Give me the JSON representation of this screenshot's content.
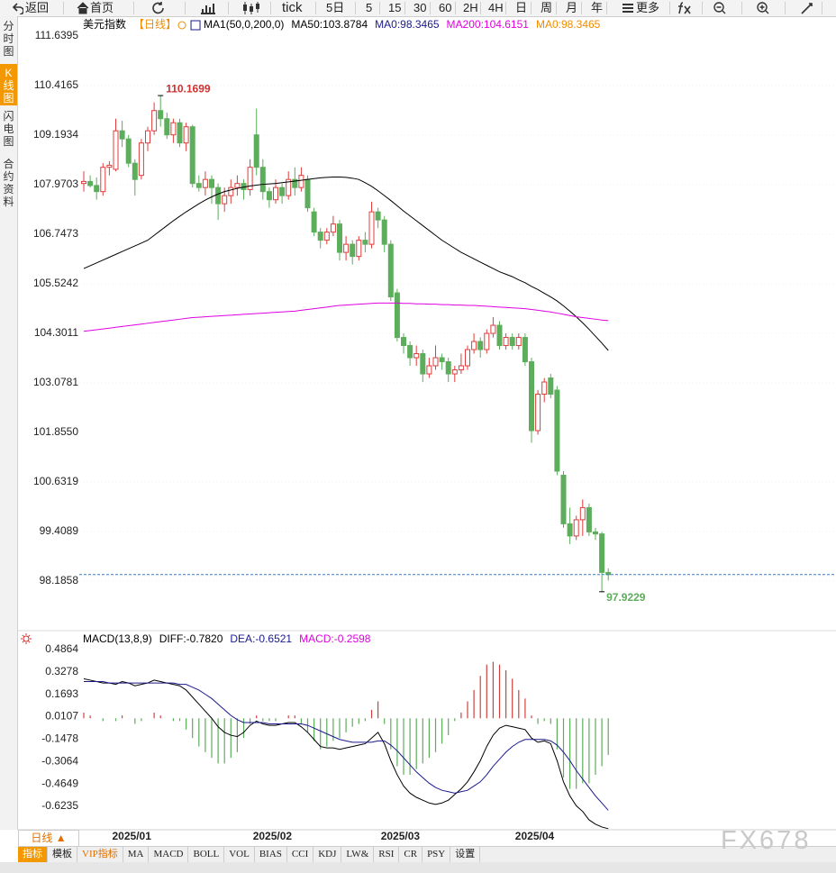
{
  "toolbar": {
    "items": [
      "返回",
      "首页",
      "tick",
      "5日",
      "5",
      "15",
      "30",
      "60",
      "2H",
      "4H",
      "日",
      "周",
      "月",
      "年",
      "更多"
    ]
  },
  "sidebar": {
    "tabs": [
      "分时图",
      "K线图",
      "闪电图",
      "合约资料"
    ]
  },
  "chart_data": [
    {
      "type": "candlestick",
      "title": "美元指数",
      "period": "【日线】",
      "legend": [
        {
          "label": "MA1(50,0,200,0)",
          "color": "#000000"
        },
        {
          "label": "MA50:103.8784",
          "color": "#000000"
        },
        {
          "label": "MA0:98.3465",
          "color": "#1a1a8c"
        },
        {
          "label": "MA200:104.6151",
          "color": "#e000e0"
        },
        {
          "label": "MA0:98.3465",
          "color": "#f08c00"
        }
      ],
      "ohlc": [
        [
          108.0,
          108.3,
          107.8,
          108.05
        ],
        [
          108.05,
          108.2,
          107.9,
          107.95
        ],
        [
          107.95,
          108.15,
          107.6,
          107.8
        ],
        [
          107.8,
          108.5,
          107.7,
          108.4
        ],
        [
          108.4,
          108.55,
          108.2,
          108.45
        ],
        [
          108.35,
          109.6,
          108.3,
          109.3
        ],
        [
          109.3,
          109.55,
          108.9,
          109.1
        ],
        [
          109.1,
          109.2,
          108.4,
          108.5
        ],
        [
          108.5,
          108.6,
          107.7,
          108.1
        ],
        [
          108.2,
          109.1,
          108.1,
          109.0
        ],
        [
          109.0,
          109.4,
          108.8,
          109.3
        ],
        [
          109.3,
          110.0,
          109.2,
          109.8
        ],
        [
          109.8,
          110.1699,
          109.4,
          109.6
        ],
        [
          109.6,
          109.75,
          109.1,
          109.2
        ],
        [
          109.2,
          109.6,
          109.0,
          109.5
        ],
        [
          109.5,
          109.6,
          108.9,
          109.0
        ],
        [
          109.0,
          109.5,
          108.8,
          109.4
        ],
        [
          109.4,
          109.45,
          107.9,
          108.0
        ],
        [
          108.0,
          108.2,
          107.8,
          107.9
        ],
        [
          107.9,
          108.3,
          107.7,
          108.1
        ],
        [
          108.1,
          108.2,
          107.5,
          107.9
        ],
        [
          107.9,
          108.0,
          107.1,
          107.5
        ],
        [
          107.5,
          107.9,
          107.3,
          107.7
        ],
        [
          107.7,
          108.1,
          107.5,
          107.9
        ],
        [
          107.9,
          108.2,
          107.7,
          108.0
        ],
        [
          108.0,
          108.1,
          107.6,
          107.85
        ],
        [
          107.85,
          108.6,
          107.7,
          108.4
        ],
        [
          109.2,
          109.85,
          108.2,
          108.4
        ],
        [
          108.4,
          108.6,
          107.6,
          107.8
        ],
        [
          107.8,
          107.9,
          107.4,
          107.6
        ],
        [
          107.6,
          108.1,
          107.5,
          107.9
        ],
        [
          107.9,
          108.0,
          107.5,
          107.7
        ],
        [
          107.7,
          108.3,
          107.6,
          108.1
        ],
        [
          108.1,
          108.4,
          107.7,
          107.9
        ],
        [
          107.9,
          108.4,
          107.8,
          108.2
        ],
        [
          108.1,
          108.2,
          107.3,
          107.4
        ],
        [
          107.3,
          107.4,
          106.7,
          106.8
        ],
        [
          106.8,
          106.9,
          106.4,
          106.6
        ],
        [
          106.6,
          106.9,
          106.5,
          106.8
        ],
        [
          106.8,
          107.2,
          106.7,
          107.0
        ],
        [
          107.0,
          107.1,
          106.1,
          106.3
        ],
        [
          106.3,
          106.7,
          106.1,
          106.5
        ],
        [
          106.5,
          106.6,
          106.0,
          106.2
        ],
        [
          106.2,
          106.7,
          106.1,
          106.6
        ],
        [
          106.6,
          106.8,
          106.3,
          106.5
        ],
        [
          106.5,
          107.55,
          106.4,
          107.3
        ],
        [
          107.3,
          107.4,
          106.9,
          107.1
        ],
        [
          107.1,
          107.2,
          106.3,
          106.5
        ],
        [
          106.5,
          106.6,
          105.1,
          105.2
        ],
        [
          105.3,
          105.4,
          104.1,
          104.2
        ],
        [
          104.2,
          104.3,
          103.8,
          104.0
        ],
        [
          104.0,
          104.1,
          103.5,
          103.7
        ],
        [
          103.7,
          104.0,
          103.5,
          103.8
        ],
        [
          103.8,
          103.9,
          103.1,
          103.3
        ],
        [
          103.3,
          103.7,
          103.2,
          103.5
        ],
        [
          103.5,
          104.0,
          103.4,
          103.7
        ],
        [
          103.7,
          103.8,
          103.4,
          103.6
        ],
        [
          103.6,
          103.7,
          103.1,
          103.3
        ],
        [
          103.3,
          103.5,
          103.1,
          103.4
        ],
        [
          103.4,
          103.8,
          103.3,
          103.5
        ],
        [
          103.5,
          104.0,
          103.4,
          103.9
        ],
        [
          103.9,
          104.3,
          103.8,
          104.1
        ],
        [
          104.1,
          104.2,
          103.7,
          103.9
        ],
        [
          103.9,
          104.4,
          103.8,
          104.3
        ],
        [
          104.3,
          104.7,
          104.2,
          104.5
        ],
        [
          104.5,
          104.6,
          103.9,
          104.0
        ],
        [
          104.0,
          104.3,
          103.9,
          104.2
        ],
        [
          104.2,
          104.3,
          103.9,
          104.0
        ],
        [
          104.0,
          104.3,
          103.9,
          104.2
        ],
        [
          104.2,
          104.3,
          103.5,
          103.6
        ],
        [
          103.6,
          103.7,
          101.6,
          101.9
        ],
        [
          101.9,
          102.9,
          101.8,
          102.8
        ],
        [
          102.8,
          103.2,
          102.6,
          103.1
        ],
        [
          103.2,
          103.3,
          102.7,
          102.8
        ],
        [
          102.9,
          103.0,
          100.8,
          100.9
        ],
        [
          100.8,
          100.9,
          99.5,
          99.6
        ],
        [
          99.6,
          100.0,
          99.1,
          99.3
        ],
        [
          99.3,
          99.8,
          99.2,
          99.7
        ],
        [
          99.7,
          100.2,
          99.3,
          100.0
        ],
        [
          100.0,
          100.1,
          99.3,
          99.4
        ],
        [
          99.4,
          99.5,
          99.2,
          99.35
        ],
        [
          99.35,
          99.4,
          97.9229,
          98.4
        ],
        [
          98.4,
          98.5,
          98.2,
          98.3465
        ]
      ],
      "up_color": "#e03c3c",
      "down_color": "#5cad5c",
      "series": [
        {
          "color": "#000000",
          "values": [
            105.9,
            105.97,
            106.04,
            106.11,
            106.18,
            106.25,
            106.32,
            106.39,
            106.46,
            106.53,
            106.6,
            106.72,
            106.84,
            106.96,
            107.08,
            107.19,
            107.3,
            107.4,
            107.5,
            107.59,
            107.67,
            107.74,
            107.8,
            107.84,
            107.88,
            107.91,
            107.94,
            107.96,
            107.98,
            107.99,
            108.0,
            108.02,
            108.04,
            108.06,
            108.08,
            108.1,
            108.12,
            108.14,
            108.15,
            108.16,
            108.16,
            108.15,
            108.13,
            108.1,
            108.02,
            107.93,
            107.82,
            107.7,
            107.58,
            107.45,
            107.32,
            107.2,
            107.08,
            106.96,
            106.84,
            106.72,
            106.6,
            106.5,
            106.4,
            106.3,
            106.22,
            106.14,
            106.06,
            105.98,
            105.9,
            105.82,
            105.76,
            105.7,
            105.62,
            105.55,
            105.46,
            105.38,
            105.29,
            105.2,
            105.1,
            104.98,
            104.85,
            104.71,
            104.56,
            104.4,
            104.23,
            104.06,
            103.8784
          ]
        },
        {
          "color": "#e000e0",
          "values": [
            104.35,
            104.37,
            104.39,
            104.41,
            104.43,
            104.45,
            104.47,
            104.49,
            104.51,
            104.53,
            104.55,
            104.57,
            104.59,
            104.61,
            104.63,
            104.65,
            104.67,
            104.69,
            104.7,
            104.71,
            104.72,
            104.73,
            104.74,
            104.75,
            104.76,
            104.77,
            104.78,
            104.79,
            104.8,
            104.81,
            104.82,
            104.83,
            104.84,
            104.85,
            104.87,
            104.89,
            104.91,
            104.93,
            104.95,
            104.97,
            104.99,
            105.0,
            105.01,
            105.02,
            105.03,
            105.04,
            105.05,
            105.05,
            105.05,
            105.05,
            105.04,
            105.04,
            105.03,
            105.03,
            105.02,
            105.02,
            105.01,
            105.01,
            105.0,
            105.0,
            104.99,
            104.99,
            104.98,
            104.97,
            104.96,
            104.95,
            104.94,
            104.93,
            104.92,
            104.91,
            104.89,
            104.87,
            104.85,
            104.83,
            104.8,
            104.77,
            104.74,
            104.71,
            104.69,
            104.67,
            104.65,
            104.63,
            104.6151
          ]
        }
      ],
      "price_line_color": "#3a7fc0",
      "ylim": [
        96.9628,
        112.0398
      ],
      "yticks": [
        111.6395,
        110.4165,
        109.1934,
        107.9703,
        106.7473,
        105.5242,
        104.3011,
        103.0781,
        {
          "value": 101.855,
          "label": "101.8550"
        },
        100.6319,
        99.4089,
        98.1858
      ],
      "grid": true,
      "high_label": 110.1699,
      "low_label": 97.9229,
      "high_color": "#d03030",
      "low_color": "#5cad5c"
    },
    {
      "type": "macd",
      "title": "MACD(13,8,9)",
      "legend": [
        {
          "label": "DIFF:-0.7820",
          "color": "#000000"
        },
        {
          "label": "DEA:-0.6521",
          "color": "#1a1a8c"
        },
        {
          "label": "MACD:-0.2598",
          "color": "#e000e0"
        }
      ],
      "categories": [
        null,
        null,
        null,
        null,
        null,
        "2025/01",
        null,
        null,
        null,
        null,
        null,
        null,
        null,
        null,
        null,
        null,
        null,
        null,
        null,
        null,
        null,
        null,
        null,
        null,
        null,
        null,
        null,
        "2025/02",
        null,
        null,
        null,
        null,
        null,
        null,
        null,
        null,
        null,
        null,
        null,
        null,
        null,
        null,
        null,
        null,
        null,
        null,
        null,
        "2025/03",
        null,
        null,
        null,
        null,
        null,
        null,
        null,
        null,
        null,
        null,
        null,
        null,
        null,
        null,
        null,
        null,
        null,
        null,
        null,
        null,
        "2025/04",
        null,
        null,
        null,
        null,
        null,
        null,
        null,
        null,
        null,
        null,
        null,
        null,
        null,
        null
      ],
      "series": [
        {
          "color": "#000000",
          "values": [
            0.28,
            0.27,
            0.26,
            0.25,
            0.25,
            0.24,
            0.26,
            0.25,
            0.23,
            0.24,
            0.25,
            0.27,
            0.26,
            0.25,
            0.24,
            0.23,
            0.2,
            0.15,
            0.1,
            0.05,
            0.0,
            -0.06,
            -0.1,
            -0.12,
            -0.13,
            -0.1,
            -0.05,
            -0.02,
            -0.04,
            -0.05,
            -0.05,
            -0.04,
            -0.03,
            -0.03,
            -0.06,
            -0.1,
            -0.15,
            -0.2,
            -0.21,
            -0.21,
            -0.22,
            -0.21,
            -0.2,
            -0.19,
            -0.18,
            -0.14,
            -0.1,
            -0.18,
            -0.3,
            -0.4,
            -0.48,
            -0.53,
            -0.56,
            -0.58,
            -0.6,
            -0.61,
            -0.6,
            -0.58,
            -0.54,
            -0.5,
            -0.45,
            -0.38,
            -0.3,
            -0.2,
            -0.12,
            -0.07,
            -0.05,
            -0.06,
            -0.07,
            -0.08,
            -0.14,
            -0.17,
            -0.16,
            -0.18,
            -0.3,
            -0.45,
            -0.55,
            -0.62,
            -0.66,
            -0.72,
            -0.75,
            -0.77,
            -0.782
          ]
        },
        {
          "color": "#1a1a8c",
          "values": [
            0.26,
            0.26,
            0.26,
            0.26,
            0.25,
            0.25,
            0.25,
            0.25,
            0.25,
            0.25,
            0.25,
            0.25,
            0.25,
            0.25,
            0.25,
            0.24,
            0.24,
            0.22,
            0.2,
            0.17,
            0.14,
            0.1,
            0.06,
            0.02,
            -0.01,
            -0.03,
            -0.03,
            -0.03,
            -0.03,
            -0.04,
            -0.04,
            -0.04,
            -0.04,
            -0.04,
            -0.04,
            -0.05,
            -0.07,
            -0.09,
            -0.11,
            -0.13,
            -0.15,
            -0.16,
            -0.17,
            -0.17,
            -0.17,
            -0.17,
            -0.16,
            -0.16,
            -0.19,
            -0.23,
            -0.28,
            -0.33,
            -0.38,
            -0.42,
            -0.46,
            -0.49,
            -0.51,
            -0.52,
            -0.53,
            -0.52,
            -0.51,
            -0.48,
            -0.45,
            -0.4,
            -0.34,
            -0.29,
            -0.24,
            -0.2,
            -0.17,
            -0.15,
            -0.15,
            -0.15,
            -0.15,
            -0.16,
            -0.19,
            -0.24,
            -0.3,
            -0.37,
            -0.43,
            -0.49,
            -0.55,
            -0.6,
            -0.6521
          ]
        }
      ],
      "bars": {
        "up_color": "#d04040",
        "down_color": "#5cad5c",
        "values": [
          0.04,
          0.02,
          0,
          -0.02,
          0,
          -0.02,
          0.02,
          0,
          -0.04,
          -0.02,
          0,
          0.04,
          0.02,
          0,
          -0.02,
          -0.02,
          -0.08,
          -0.14,
          -0.2,
          -0.24,
          -0.28,
          -0.32,
          -0.32,
          -0.28,
          -0.24,
          -0.14,
          -0.04,
          0.02,
          -0.02,
          -0.02,
          -0.02,
          0,
          0.02,
          0.02,
          -0.04,
          -0.1,
          -0.16,
          -0.22,
          -0.2,
          -0.16,
          -0.14,
          -0.1,
          -0.06,
          -0.04,
          -0.02,
          0.06,
          0.12,
          -0.04,
          -0.22,
          -0.34,
          -0.4,
          -0.4,
          -0.36,
          -0.32,
          -0.28,
          -0.24,
          -0.18,
          -0.12,
          -0.02,
          0.04,
          0.12,
          0.2,
          0.3,
          0.38,
          0.4,
          0.38,
          0.34,
          0.28,
          0.2,
          0.14,
          0.02,
          -0.04,
          -0.02,
          -0.04,
          -0.22,
          -0.42,
          -0.5,
          -0.5,
          -0.46,
          -0.46,
          -0.4,
          -0.34,
          -0.2598
        ]
      },
      "ylim": [
        -0.796,
        0.544
      ],
      "yticks": [
        0.4864,
        0.3278,
        0.1693,
        0.0107,
        -0.1478,
        -0.3064,
        -0.4649,
        -0.6235
      ]
    }
  ],
  "bottom": {
    "period": "日线 ▲",
    "tabs": [
      "指标",
      "模板",
      "VIP指标",
      "MA",
      "MACD",
      "BOLL",
      "VOL",
      "BIAS",
      "CCI",
      "KDJ",
      "LW&",
      "RSI",
      "CR",
      "PSY",
      "设置"
    ],
    "watermark": "FX678"
  }
}
